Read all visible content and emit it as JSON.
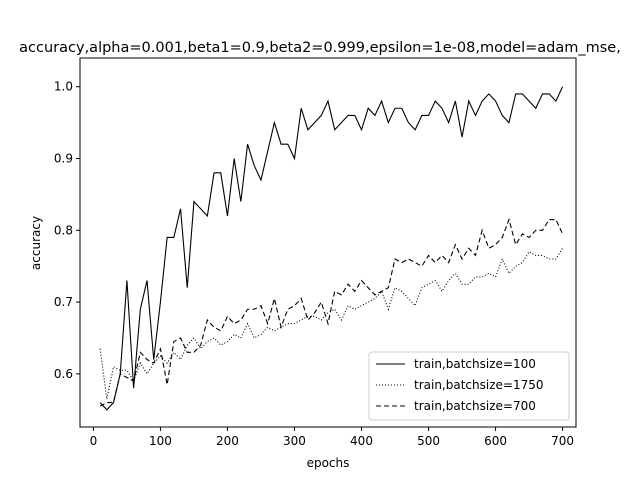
{
  "chart_data": {
    "type": "line",
    "title": "accuracy,alpha=0.001,beta1=0.9,beta2=0.999,epsilon=1e-08,model=adam_mse,",
    "xlabel": "epochs",
    "ylabel": "accuracy",
    "xlim": [
      -20,
      720
    ],
    "ylim": [
      0.526,
      1.04
    ],
    "xticks": [
      0,
      100,
      200,
      300,
      400,
      500,
      600,
      700
    ],
    "yticks": [
      0.6,
      0.7,
      0.8,
      0.9,
      1.0
    ],
    "xtick_labels": [
      "0",
      "100",
      "200",
      "300",
      "400",
      "500",
      "600",
      "700"
    ],
    "ytick_labels": [
      "0.6",
      "0.7",
      "0.8",
      "0.9",
      "1.0"
    ],
    "grid": false,
    "legend_position": "lower-right",
    "x": [
      10,
      20,
      30,
      40,
      50,
      60,
      70,
      80,
      90,
      100,
      110,
      120,
      130,
      140,
      150,
      160,
      170,
      180,
      190,
      200,
      210,
      220,
      230,
      240,
      250,
      260,
      270,
      280,
      290,
      300,
      310,
      320,
      330,
      340,
      350,
      360,
      370,
      380,
      390,
      400,
      410,
      420,
      430,
      440,
      450,
      460,
      470,
      480,
      490,
      500,
      510,
      520,
      530,
      540,
      550,
      560,
      570,
      580,
      590,
      600,
      610,
      620,
      630,
      640,
      650,
      660,
      670,
      680,
      690,
      700
    ],
    "series": [
      {
        "name": "train,batchsize=100",
        "style": "solid",
        "values": [
          0.56,
          0.55,
          0.56,
          0.6,
          0.73,
          0.58,
          0.69,
          0.73,
          0.62,
          0.7,
          0.79,
          0.79,
          0.83,
          0.72,
          0.84,
          0.83,
          0.82,
          0.88,
          0.88,
          0.82,
          0.9,
          0.84,
          0.92,
          0.89,
          0.87,
          0.91,
          0.95,
          0.92,
          0.92,
          0.9,
          0.97,
          0.94,
          0.95,
          0.96,
          0.98,
          0.94,
          0.95,
          0.96,
          0.96,
          0.94,
          0.97,
          0.96,
          0.98,
          0.95,
          0.97,
          0.97,
          0.95,
          0.94,
          0.96,
          0.96,
          0.98,
          0.97,
          0.95,
          0.98,
          0.93,
          0.98,
          0.96,
          0.98,
          0.99,
          0.98,
          0.96,
          0.95,
          0.99,
          0.99,
          0.98,
          0.97,
          0.99,
          0.99,
          0.98,
          1.0
        ]
      },
      {
        "name": "train,batchsize=1750",
        "style": "dotted",
        "values": [
          0.635,
          0.565,
          0.61,
          0.605,
          0.605,
          0.59,
          0.615,
          0.6,
          0.615,
          0.625,
          0.615,
          0.63,
          0.62,
          0.64,
          0.65,
          0.635,
          0.645,
          0.65,
          0.64,
          0.645,
          0.655,
          0.65,
          0.67,
          0.65,
          0.655,
          0.665,
          0.66,
          0.665,
          0.67,
          0.67,
          0.675,
          0.68,
          0.68,
          0.675,
          0.685,
          0.69,
          0.675,
          0.695,
          0.69,
          0.695,
          0.7,
          0.705,
          0.715,
          0.69,
          0.72,
          0.715,
          0.705,
          0.695,
          0.72,
          0.725,
          0.73,
          0.715,
          0.73,
          0.74,
          0.725,
          0.725,
          0.735,
          0.735,
          0.74,
          0.735,
          0.76,
          0.74,
          0.75,
          0.755,
          0.77,
          0.765,
          0.765,
          0.76,
          0.76,
          0.775
        ]
      },
      {
        "name": "train,batchsize=700",
        "style": "dashed",
        "values": [
          0.555,
          0.56,
          0.56,
          0.6,
          0.595,
          0.59,
          0.63,
          0.62,
          0.615,
          0.635,
          0.585,
          0.645,
          0.65,
          0.63,
          0.63,
          0.64,
          0.675,
          0.665,
          0.66,
          0.68,
          0.67,
          0.675,
          0.69,
          0.69,
          0.695,
          0.67,
          0.705,
          0.665,
          0.69,
          0.695,
          0.705,
          0.675,
          0.685,
          0.7,
          0.67,
          0.715,
          0.71,
          0.725,
          0.715,
          0.73,
          0.72,
          0.71,
          0.715,
          0.72,
          0.76,
          0.755,
          0.76,
          0.755,
          0.75,
          0.765,
          0.755,
          0.765,
          0.755,
          0.78,
          0.76,
          0.775,
          0.765,
          0.8,
          0.775,
          0.78,
          0.79,
          0.815,
          0.78,
          0.795,
          0.79,
          0.8,
          0.8,
          0.815,
          0.815,
          0.795
        ]
      }
    ]
  }
}
